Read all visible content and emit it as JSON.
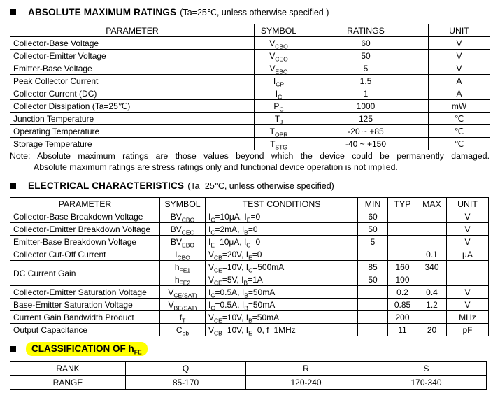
{
  "abs_max": {
    "bullet_icon": "square-bullet",
    "title": "ABSOLUTE MAXIMUM RATINGS",
    "subtitle": "(Ta=25℃, unless otherwise specified )",
    "table": {
      "headers": [
        "PARAMETER",
        "SYMBOL",
        "RATINGS",
        "UNIT"
      ],
      "rows": [
        {
          "parameter": "Collector-Base Voltage",
          "symbol": "V_{CBO}",
          "rating": "60",
          "unit": "V"
        },
        {
          "parameter": "Collector-Emitter Voltage",
          "symbol": "V_{CEO}",
          "rating": "50",
          "unit": "V"
        },
        {
          "parameter": "Emitter-Base Voltage",
          "symbol": "V_{EBO}",
          "rating": "5",
          "unit": "V"
        },
        {
          "parameter": "Peak Collector Current",
          "symbol": "I_{CP}",
          "rating": "1.5",
          "unit": "A"
        },
        {
          "parameter": "Collector Current (DC)",
          "symbol": "I_{C}",
          "rating": "1",
          "unit": "A"
        },
        {
          "parameter": "Collector Dissipation (Ta=25℃)",
          "symbol": "P_{C}",
          "rating": "1000",
          "unit": "mW"
        },
        {
          "parameter": "Junction Temperature",
          "symbol": "T_{J}",
          "rating": "125",
          "unit": "℃"
        },
        {
          "parameter": "Operating Temperature",
          "symbol": "T_{OPR}",
          "rating": "-20 ~ +85",
          "unit": "℃"
        },
        {
          "parameter": "Storage Temperature",
          "symbol": "T_{STG}",
          "rating": "-40 ~ +150",
          "unit": "℃"
        }
      ]
    }
  },
  "note": {
    "label": "Note:",
    "line1": "Absolute maximum ratings are those values beyond which the device could be permanently damaged.",
    "line2": "Absolute maximum ratings are stress ratings only and functional device operation is not implied."
  },
  "electrical": {
    "bullet_icon": "square-bullet",
    "title": "ELECTRICAL CHARACTERISTICS",
    "subtitle": "(Ta=25℃, unless otherwise specified)",
    "table": {
      "headers": [
        "PARAMETER",
        "SYMBOL",
        "TEST CONDITIONS",
        "MIN",
        "TYP",
        "MAX",
        "UNIT"
      ],
      "rows": [
        {
          "parameter": "Collector-Base Breakdown Voltage",
          "param_rowspan": 1,
          "symbol": "BV_{CBO}",
          "conditions": "I_{C}=10μA, I_{E}=0",
          "min": "60",
          "typ": "",
          "max": "",
          "unit": "V"
        },
        {
          "parameter": "Collector-Emitter Breakdown Voltage",
          "param_rowspan": 1,
          "symbol": "BV_{CEO}",
          "conditions": "I_{C}=2mA, I_{B}=0",
          "min": "50",
          "typ": "",
          "max": "",
          "unit": "V"
        },
        {
          "parameter": "Emitter-Base Breakdown Voltage",
          "param_rowspan": 1,
          "symbol": "BV_{EBO}",
          "conditions": "I_{E}=10μA, I_{C}=0",
          "min": "5",
          "typ": "",
          "max": "",
          "unit": "V"
        },
        {
          "parameter": "Collector Cut-Off Current",
          "param_rowspan": 1,
          "symbol": "I_{CBO}",
          "conditions": "V_{CB}=20V, I_{E}=0",
          "min": "",
          "typ": "",
          "max": "0.1",
          "unit": "μA"
        },
        {
          "parameter": "DC Current Gain",
          "param_rowspan": 2,
          "symbol": "h_{FE1}",
          "conditions": "V_{CE}=10V, I_{C}=500mA",
          "min": "85",
          "typ": "160",
          "max": "340",
          "unit": ""
        },
        {
          "parameter": null,
          "param_rowspan": 0,
          "symbol": "h_{FE2}",
          "conditions": "V_{CE}=5V, I_{B}=1A",
          "min": "50",
          "typ": "100",
          "max": "",
          "unit": ""
        },
        {
          "parameter": "Collector-Emitter Saturation Voltage",
          "param_rowspan": 1,
          "symbol": "V_{CE(SAT)}",
          "conditions": "I_{C}=0.5A, I_{B}=50mA",
          "min": "",
          "typ": "0.2",
          "max": "0.4",
          "unit": "V"
        },
        {
          "parameter": "Base-Emitter Saturation Voltage",
          "param_rowspan": 1,
          "symbol": "V_{BE(SAT)}",
          "conditions": "I_{C}=0.5A, I_{B}=50mA",
          "min": "",
          "typ": "0.85",
          "max": "1.2",
          "unit": "V"
        },
        {
          "parameter": "Current Gain Bandwidth Product",
          "param_rowspan": 1,
          "symbol": "f_{T}",
          "conditions": "V_{CE}=10V, I_{B}=50mA",
          "min": "",
          "typ": "200",
          "max": "",
          "unit": "MHz"
        },
        {
          "parameter": "Output Capacitance",
          "param_rowspan": 1,
          "symbol": "C_{ob}",
          "conditions": "V_{CB}=10V, I_{E}=0, f=1MHz",
          "min": "",
          "typ": "11",
          "max": "20",
          "unit": "pF"
        }
      ]
    }
  },
  "classification": {
    "bullet_icon": "square-bullet",
    "title": "CLASSIFICATION OF h_{FE}",
    "highlight_color": "#ffff00",
    "table": {
      "rows": [
        {
          "label": "RANK",
          "values": [
            "Q",
            "R",
            "S"
          ]
        },
        {
          "label": "RANGE",
          "values": [
            "85-170",
            "120-240",
            "170-340"
          ]
        }
      ]
    }
  }
}
